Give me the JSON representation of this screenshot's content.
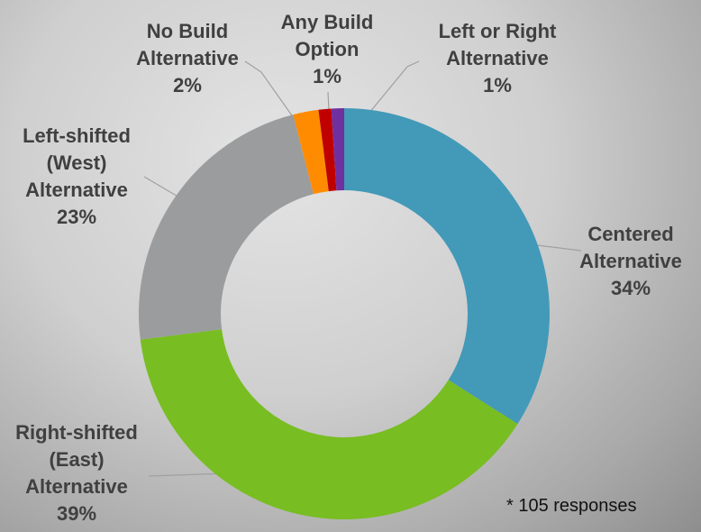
{
  "chart_data": {
    "type": "donut",
    "categories": [
      "Centered\nAlternative",
      "Right-shifted\n(East)\nAlternative",
      "Left-shifted\n(West)\nAlternative",
      "No Build\nAlternative",
      "Any Build\nOption",
      "Left or Right\nAlternative"
    ],
    "values": [
      34,
      39,
      23,
      2,
      1,
      1
    ],
    "value_labels": [
      "34%",
      "39%",
      "23%",
      "2%",
      "1%",
      "1%"
    ],
    "colors": [
      "#4399b8",
      "#78bd22",
      "#9a9c9e",
      "#ff8c00",
      "#c00000",
      "#7030a0"
    ],
    "annotation": "* 105 responses"
  }
}
